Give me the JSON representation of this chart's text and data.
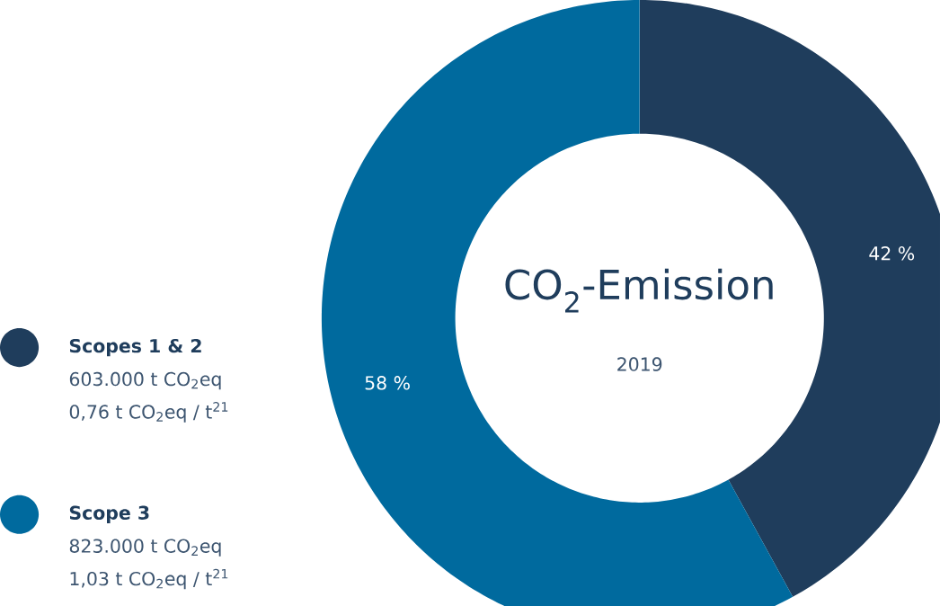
{
  "chart_data": {
    "type": "donut",
    "title": "CO$_{2}$-Emission",
    "subtitle": "2019",
    "categories": [
      "Scopes 1 & 2",
      "Scope 3"
    ],
    "values": [
      42,
      58
    ],
    "colors": [
      "#1f3d5c",
      "#006a9e"
    ],
    "value_labels": [
      "42 %",
      "58 %"
    ],
    "legend": "left",
    "annotations": [
      "603.000 t CO$_{2}$eq",
      "0,76 t CO$_{2}$eq / t$^{21}$",
      "823.000 t CO$_{2}$eq",
      "1,03 t CO$_{2}$eq / t$^{21}$"
    ]
  }
}
